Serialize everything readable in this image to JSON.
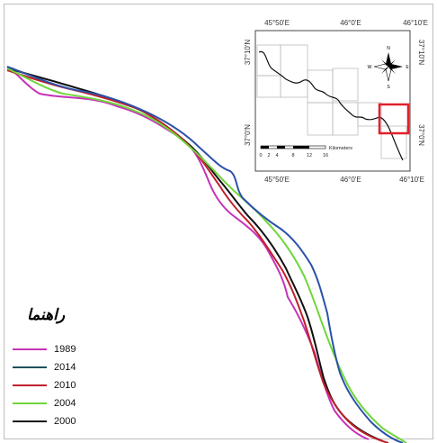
{
  "map": {
    "legend": {
      "title": "راهنما",
      "items": [
        {
          "label": "1989",
          "color": "#c633b8"
        },
        {
          "label": "2014",
          "color": "#1f4e5a"
        },
        {
          "label": "2010",
          "color": "#c0202a"
        },
        {
          "label": "2004",
          "color": "#6fd63a"
        },
        {
          "label": "2000",
          "color": "#111111"
        }
      ]
    },
    "shorelines": {
      "2014_blue": "#2c52a8"
    },
    "inset": {
      "top_lon_labels": [
        "45°50'E",
        "46°0'E",
        "46°10'E"
      ],
      "bottom_lon_labels": [
        "45°50'E",
        "46°0'E",
        "46°10'E"
      ],
      "left_lat_labels": [
        "37°10'N",
        "37°0'N"
      ],
      "right_lat_labels": [
        "37°10'N",
        "37°0'N"
      ],
      "scale_ticks": [
        "0",
        "2",
        "4",
        "8",
        "12",
        "16"
      ],
      "scale_unit": "Kilometers",
      "compass": {
        "n": "N",
        "s": "S",
        "e": "E",
        "w": "W"
      },
      "highlight_color": "#e0202a"
    }
  }
}
